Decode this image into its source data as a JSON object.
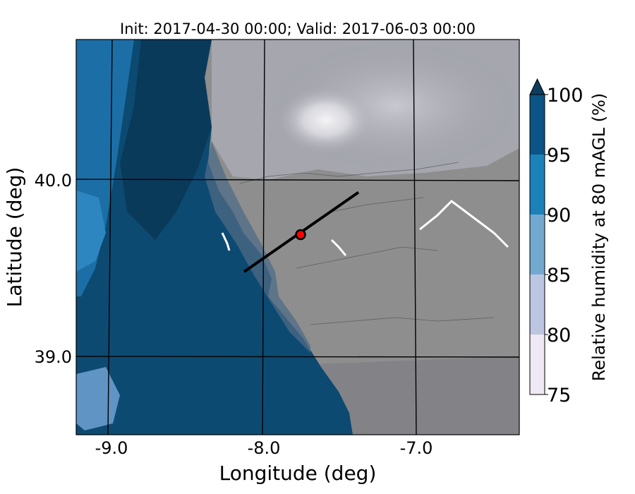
{
  "title": "Init: 2017-04-30 00:00; Valid: 2017-06-03 00:00",
  "map": {
    "xlabel": "Longitude (deg)",
    "ylabel": "Latitude (deg)",
    "lon_ticks": [
      {
        "value": -9.0,
        "label": "-9.0"
      },
      {
        "value": -8.0,
        "label": "-8.0"
      },
      {
        "value": -7.0,
        "label": "-7.0"
      }
    ],
    "lat_ticks": [
      {
        "value": 40.0,
        "label": "40.0"
      },
      {
        "value": 39.0,
        "label": "39.0"
      }
    ],
    "cross_section": {
      "start": [
        -8.12,
        39.48
      ],
      "end": [
        -7.37,
        39.93
      ]
    },
    "marker": {
      "lon": -7.75,
      "lat": 39.69,
      "color": "#ff0000"
    }
  },
  "colorbar": {
    "label": "Relative humidity at 80 mAGL (%)",
    "min": 75,
    "max": 100,
    "extend": "max",
    "bins": [
      {
        "from": 75,
        "to": 80,
        "color": "#efe9f3"
      },
      {
        "from": 80,
        "to": 85,
        "color": "#bcc6e0"
      },
      {
        "from": 85,
        "to": 90,
        "color": "#74a9cf"
      },
      {
        "from": 90,
        "to": 95,
        "color": "#1c81b9"
      },
      {
        "from": 95,
        "to": 100,
        "color": "#0c5485"
      }
    ],
    "extend_color": "#0c3d5e",
    "ticks": [
      "75",
      "80",
      "85",
      "90",
      "95",
      "100"
    ]
  },
  "colors": {
    "ocean": "#0c4a72",
    "land_gray": "#8e8e8e",
    "land_light": "#b6b7bf",
    "peak_white": "#e6e6ea"
  }
}
